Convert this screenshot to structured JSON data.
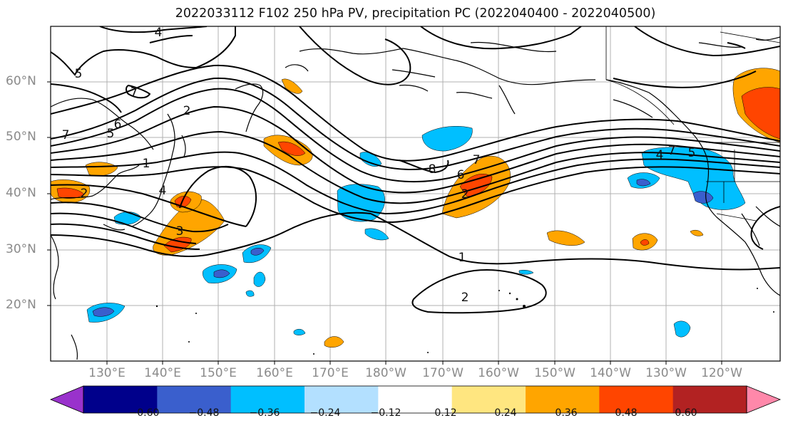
{
  "title": "2022033112 F102 250 hPa PV, precipitation PC (2022040400 - 2022040500)",
  "map": {
    "lat_labels": [
      "60°N",
      "50°N",
      "40°N",
      "30°N",
      "20°N"
    ],
    "lon_labels": [
      "130°E",
      "140°E",
      "150°E",
      "160°E",
      "170°E",
      "180°W",
      "170°W",
      "160°W",
      "150°W",
      "140°W",
      "130°W",
      "120°W"
    ],
    "contour_labels": [
      "4",
      "5",
      "7",
      "6",
      "5",
      "7",
      "2",
      "1",
      "2",
      "4",
      "3",
      "7",
      "8",
      "6",
      "7",
      "2",
      "4",
      "5",
      "1",
      "2"
    ],
    "colors": {
      "grid": "#b0b0b0",
      "contour": "#000000",
      "coast": "#000000",
      "pos_light": "#ffe680",
      "pos_mid": "#ffa500",
      "pos_strong": "#ff4500",
      "neg_light": "#b3e0ff",
      "neg_mid": "#00bfff",
      "neg_strong": "#3a5fcd"
    }
  },
  "colorbar": {
    "colors": [
      "#9932cc",
      "#00008b",
      "#3a5fcd",
      "#00bfff",
      "#b3e0ff",
      "#ffffff",
      "#ffe680",
      "#ffa500",
      "#ff4500",
      "#b22222",
      "#ff88aa"
    ],
    "tick_labels": [
      "−0.60",
      "−0.48",
      "−0.36",
      "−0.24",
      "−0.12",
      "0.12",
      "0.24",
      "0.36",
      "0.48",
      "0.60"
    ]
  }
}
